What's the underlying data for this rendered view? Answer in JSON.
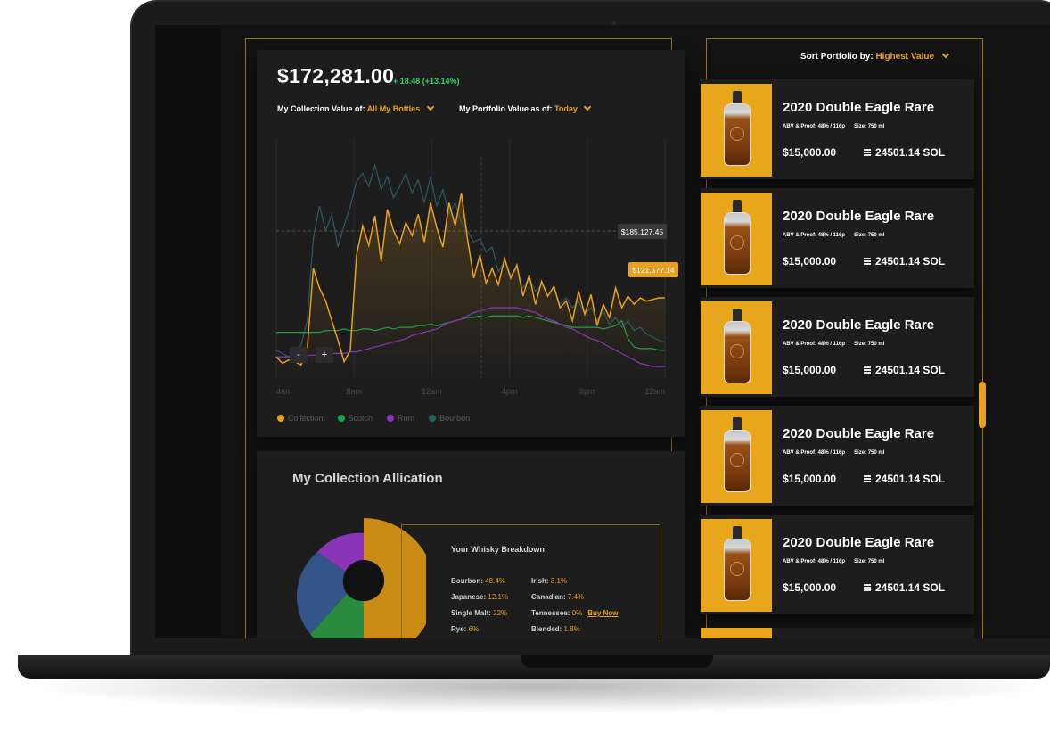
{
  "portfolio": {
    "total_value": "$172,281.00",
    "change": "+ 18.48 (+13.14%)",
    "collection_label": "My Collection Value of:",
    "collection_value": "All My Bottles",
    "asof_label": "My Portfolio Value as of:",
    "asof_value": "Today"
  },
  "chart": {
    "tooltip_top": "$185,127.45",
    "tooltip_current": "$121,577.14",
    "zoom_out": "-",
    "zoom_in": "+"
  },
  "chart_data": {
    "type": "line",
    "x_ticks": [
      "4am",
      "8am",
      "12am",
      "4pm",
      "8pm",
      "12am"
    ],
    "series": [
      {
        "name": "Collection",
        "color": "#e8a020",
        "values": [
          128000,
          124000,
          126000,
          125000,
          123000,
          132000,
          182000,
          170000,
          162000,
          150000,
          138000,
          125000,
          132000,
          190000,
          208000,
          196000,
          214000,
          186000,
          218000,
          205000,
          197000,
          210000,
          202000,
          215000,
          198000,
          222000,
          207000,
          195000,
          222000,
          208000,
          228000,
          200000,
          176000,
          190000,
          173000,
          182000,
          172000,
          188000,
          176000,
          184000,
          165000,
          178000,
          160000,
          174000,
          165000,
          171000,
          158000,
          162000,
          150000,
          168000,
          154000,
          166000,
          147000,
          160000,
          152000,
          170000,
          158000,
          165000,
          160000,
          164000,
          162000,
          163000,
          164000,
          164000
        ]
      },
      {
        "name": "Scotch",
        "color": "#23a046",
        "values": [
          143000,
          143000,
          143000,
          143000,
          143000,
          143000,
          143000,
          143000,
          144000,
          144000,
          144000,
          145000,
          144000,
          144000,
          145000,
          145000,
          144000,
          145000,
          146000,
          145000,
          146000,
          146000,
          146000,
          147000,
          147000,
          148000,
          147000,
          148000,
          149000,
          150000,
          151000,
          152000,
          152000,
          153000,
          152000,
          153000,
          153000,
          153000,
          153000,
          153000,
          152000,
          153000,
          152000,
          151000,
          150000,
          149000,
          148000,
          147000,
          146000,
          146000,
          146000,
          146000,
          146000,
          145000,
          146000,
          147000,
          150000,
          139000,
          134000,
          133000,
          133000,
          133000,
          132000,
          132000
        ]
      },
      {
        "name": "Rum",
        "color": "#8a35b8",
        "values": [
          128000,
          128000,
          128000,
          128000,
          128000,
          129000,
          129000,
          129000,
          129000,
          130000,
          130000,
          130000,
          131000,
          131000,
          132000,
          133000,
          134000,
          135000,
          136000,
          137000,
          138000,
          139000,
          141000,
          142000,
          143000,
          144000,
          145000,
          147000,
          149000,
          150000,
          151000,
          153000,
          155000,
          156000,
          157000,
          158000,
          158000,
          158000,
          158000,
          158000,
          157000,
          156000,
          155000,
          153000,
          151000,
          150000,
          148000,
          146000,
          145000,
          143000,
          141000,
          139000,
          138000,
          136000,
          134000,
          132000,
          130000,
          128000,
          126000,
          124000,
          123000,
          122000,
          122000,
          122000
        ]
      },
      {
        "name": "Bourbon",
        "color": "#2d5a60",
        "values": [
          132000,
          130000,
          128000,
          131000,
          135000,
          150000,
          200000,
          220000,
          205000,
          215000,
          195000,
          208000,
          220000,
          235000,
          240000,
          232000,
          245000,
          230000,
          238000,
          225000,
          232000,
          240000,
          228000,
          236000,
          222000,
          238000,
          220000,
          230000,
          215000,
          222000,
          210000,
          205000,
          198000,
          200000,
          192000,
          195000,
          180000,
          186000,
          178000,
          182000,
          170000,
          176000,
          168000,
          172000,
          165000,
          170000,
          160000,
          164000,
          158000,
          162000,
          154000,
          158000,
          150000,
          156000,
          148000,
          152000,
          146000,
          150000,
          144000,
          146000,
          142000,
          140000,
          138000,
          137000
        ]
      }
    ]
  },
  "allocation": {
    "title": "My Collection Allication",
    "breakdown_title": "Your Whisky Breakdown",
    "rows": [
      {
        "label": "Bourbon:",
        "pct": "48.4%"
      },
      {
        "label": "Irish:",
        "pct": "3.1%"
      },
      {
        "label": "Japanese:",
        "pct": "12.1%"
      },
      {
        "label": "Canadian:",
        "pct": "7.4%"
      },
      {
        "label": "Single Malt:",
        "pct": "22%"
      },
      {
        "label": "Tennessee:",
        "pct": "0%"
      },
      {
        "label": "Rye:",
        "pct": "6%"
      },
      {
        "label": "Blended:",
        "pct": "1.8%"
      }
    ],
    "buy_now": "Buy Now",
    "pie_colors": [
      "#c98b13",
      "#2a8a3e",
      "#33558a",
      "#8a35b8"
    ]
  },
  "sort": {
    "label": "Sort  Portfolio by:",
    "value": "Highest Value"
  },
  "bottles": [
    {
      "name": "2020 Double Eagle Rare",
      "abv": "ABV & Proof: 48% / 116p",
      "size": "Size: 750 ml",
      "usd": "$15,000.00",
      "sol": "24501.14 SOL"
    },
    {
      "name": "2020 Double Eagle Rare",
      "abv": "ABV & Proof: 48% / 116p",
      "size": "Size: 750 ml",
      "usd": "$15,000.00",
      "sol": "24501.14 SOL"
    },
    {
      "name": "2020 Double Eagle Rare",
      "abv": "ABV & Proof: 48% / 116p",
      "size": "Size: 750 ml",
      "usd": "$15,000.00",
      "sol": "24501.14 SOL"
    },
    {
      "name": "2020 Double Eagle Rare",
      "abv": "ABV & Proof: 48% / 116p",
      "size": "Size: 750 ml",
      "usd": "$15,000.00",
      "sol": "24501.14 SOL"
    },
    {
      "name": "2020 Double Eagle Rare",
      "abv": "ABV & Proof: 48% / 116p",
      "size": "Size: 750 ml",
      "usd": "$15,000.00",
      "sol": "24501.14 SOL"
    }
  ]
}
